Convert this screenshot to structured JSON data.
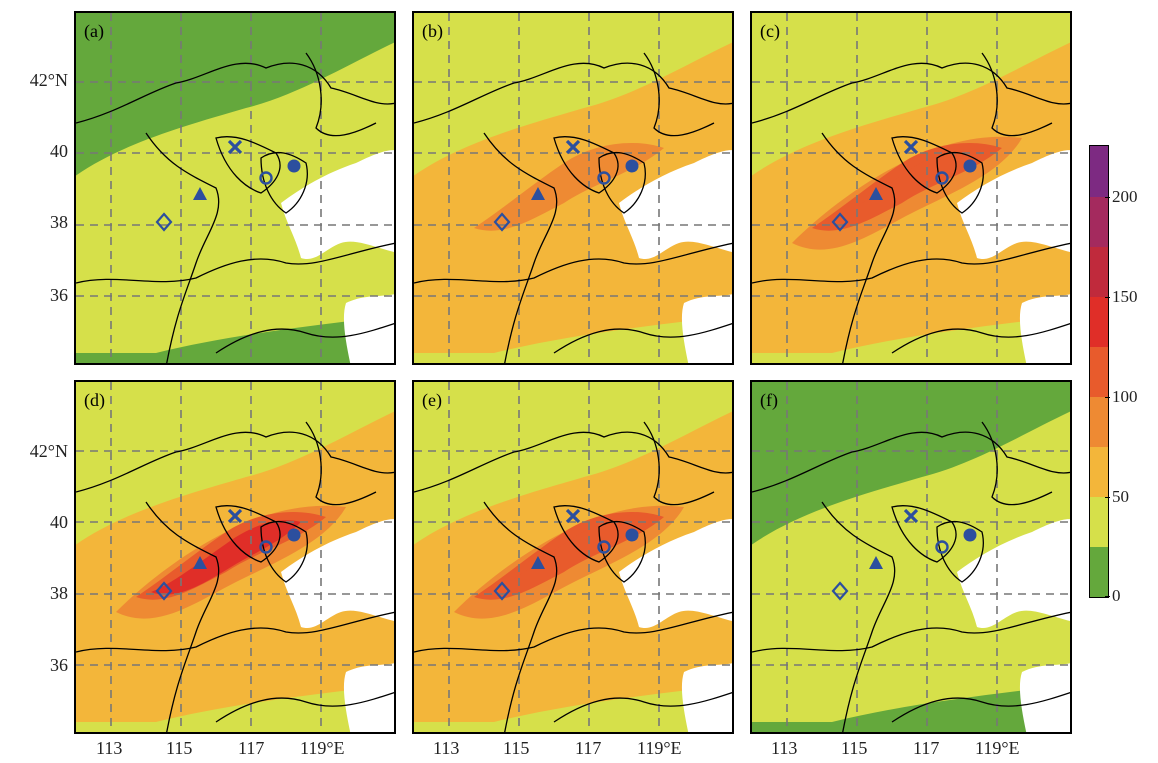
{
  "panels": [
    {
      "label": "(a)",
      "level": 0
    },
    {
      "label": "(b)",
      "level": 1
    },
    {
      "label": "(c)",
      "level": 2
    },
    {
      "label": "(d)",
      "level": 3
    },
    {
      "label": "(e)",
      "level": 2
    },
    {
      "label": "(f)",
      "level": 0
    }
  ],
  "axes": {
    "lat_ticks": [
      "42°N",
      "40",
      "38",
      "36"
    ],
    "lon_ticks": [
      "113",
      "115",
      "117",
      "119°E"
    ]
  },
  "colorbar": {
    "ticks": [
      "200",
      "150",
      "100",
      "50",
      "0"
    ],
    "colors": [
      "#64a83c",
      "#d6e04a",
      "#f3b63a",
      "#ee8a33",
      "#e85b2c",
      "#e02e28",
      "#c02a3c",
      "#a42a5e",
      "#7d2a82"
    ]
  },
  "markers": [
    {
      "name": "cross-marker",
      "symbol": "×"
    },
    {
      "name": "circle-filled-marker",
      "symbol": "●"
    },
    {
      "name": "circle-open-marker",
      "symbol": "○"
    },
    {
      "name": "triangle-marker",
      "symbol": "▲"
    },
    {
      "name": "diamond-marker",
      "symbol": "◇"
    }
  ]
}
